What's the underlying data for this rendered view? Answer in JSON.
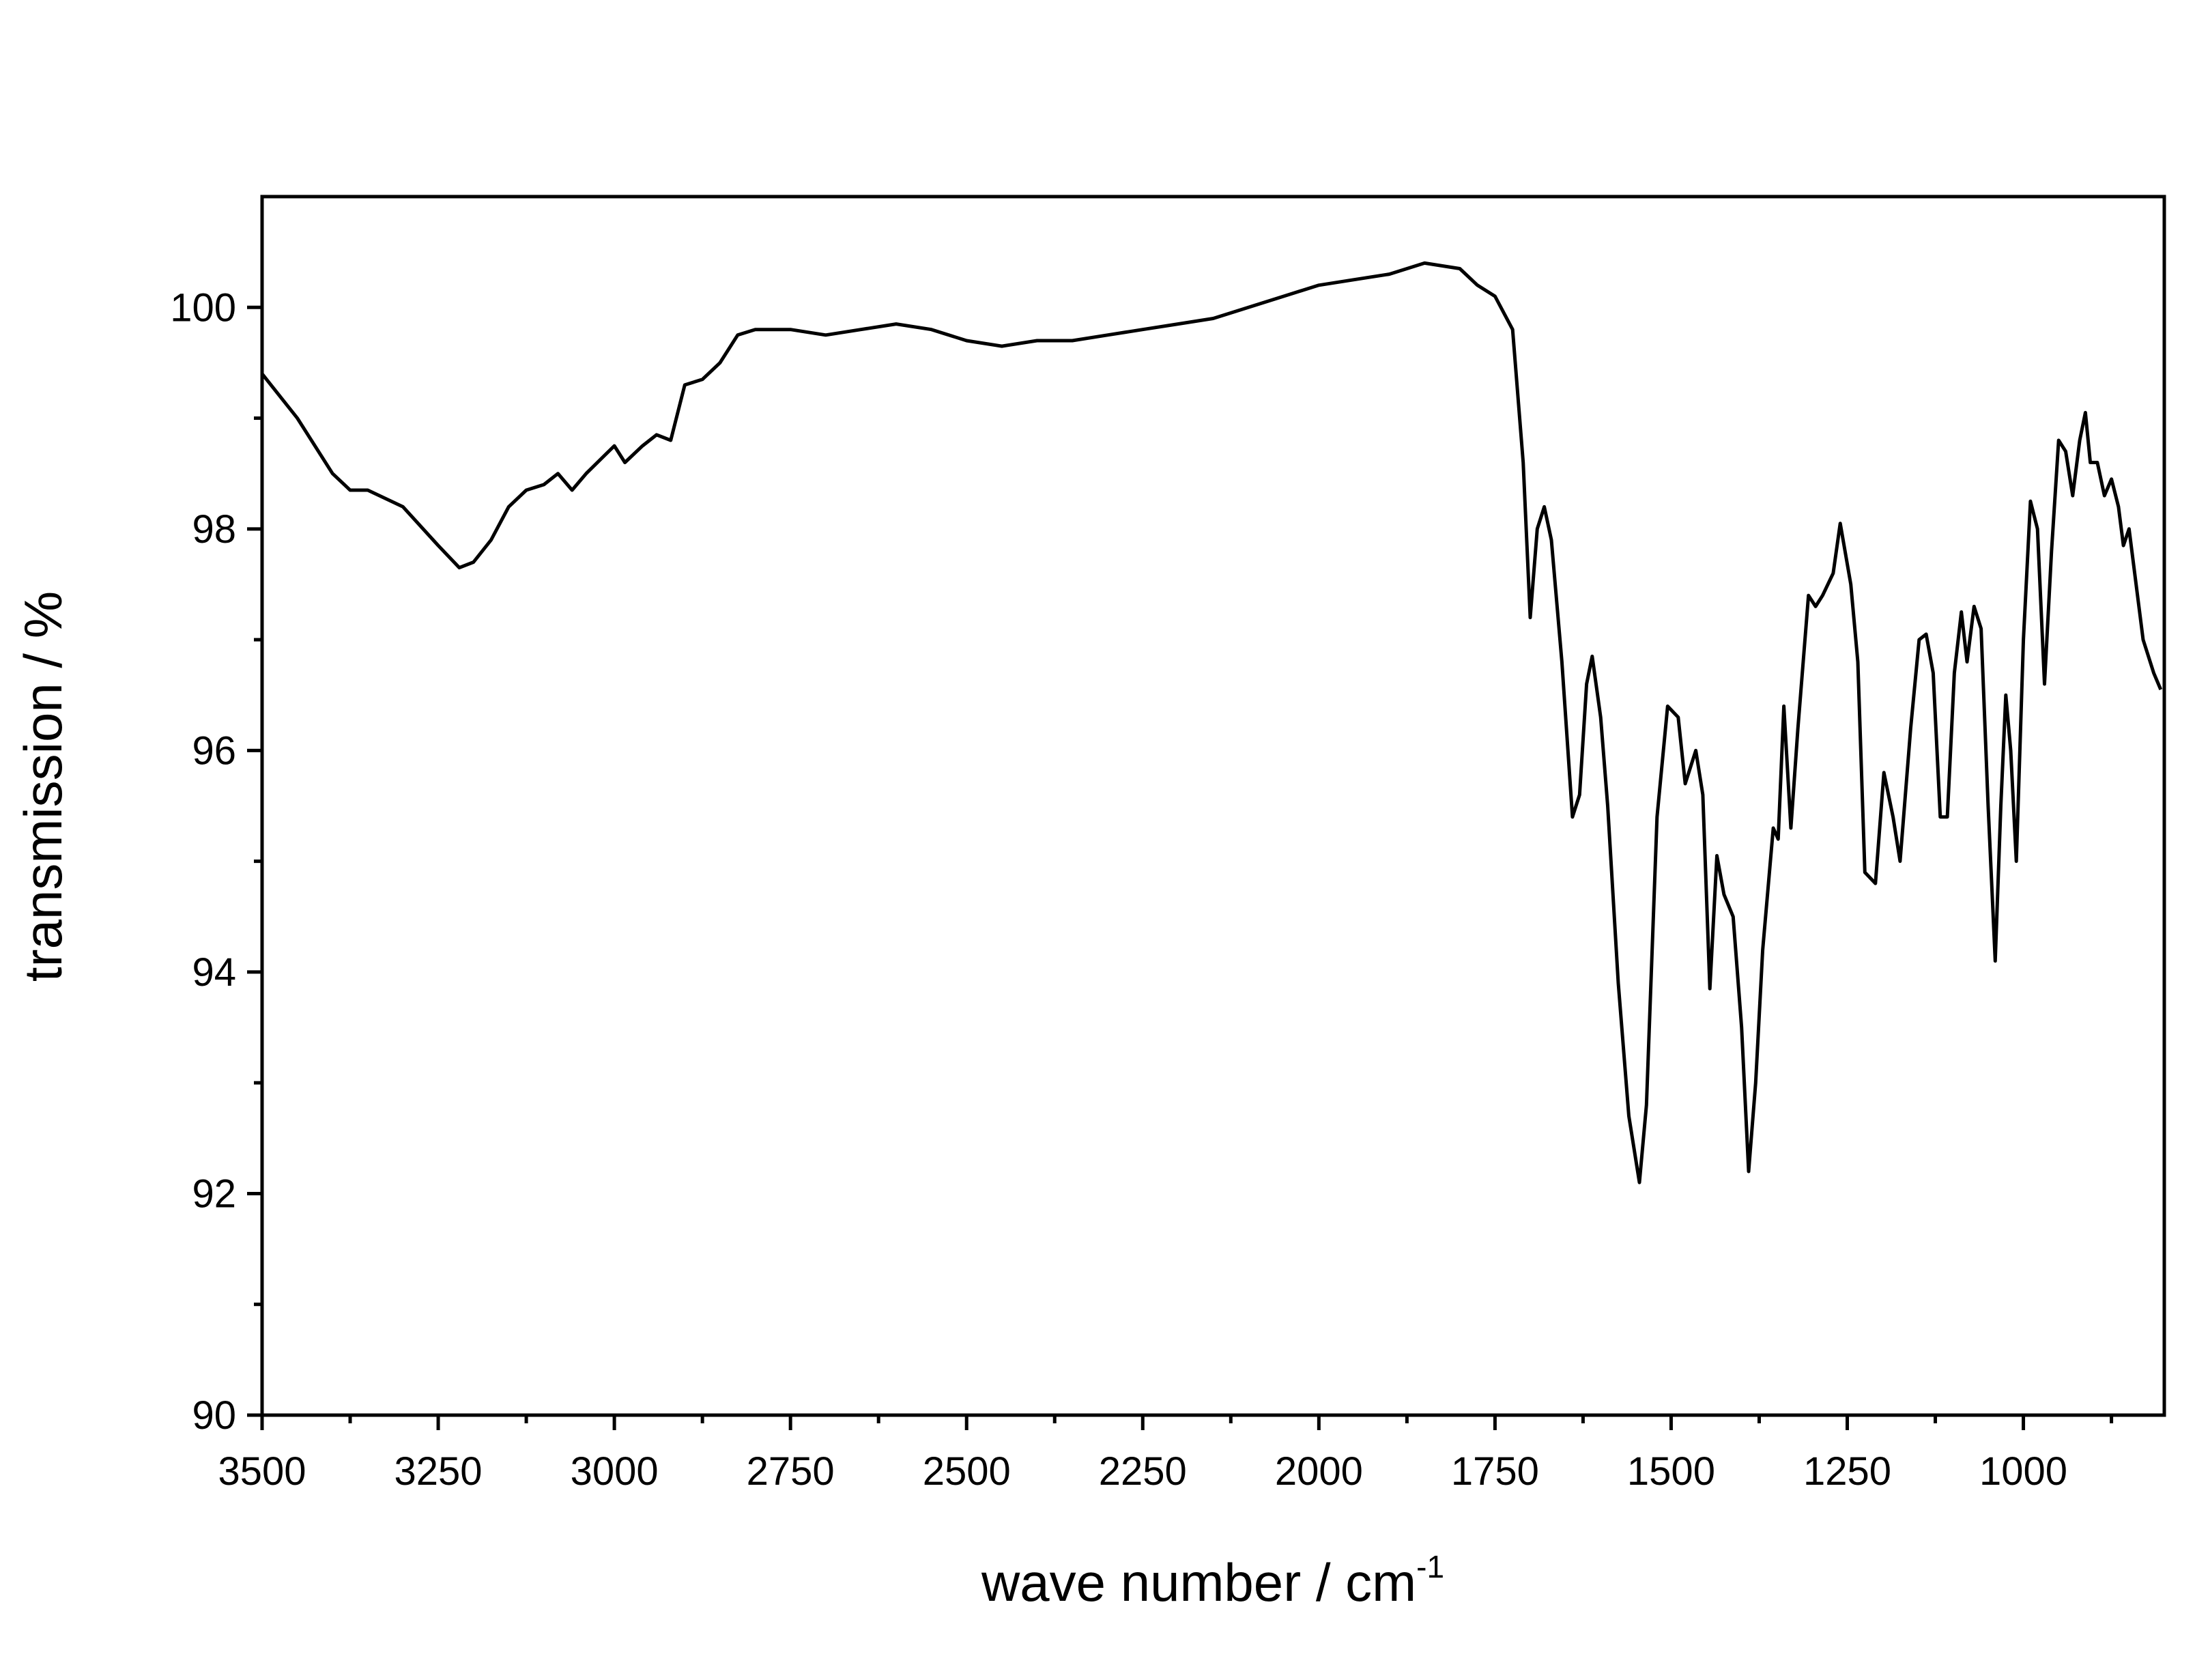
{
  "chart_data": {
    "type": "line",
    "x_label": "wave number / cm",
    "x_label_superscript": "-1",
    "y_label": "transmission / %",
    "xlim": [
      3500,
      800
    ],
    "ylim": [
      90,
      101
    ],
    "xticks": [
      3500,
      3250,
      3000,
      2750,
      2500,
      2250,
      2000,
      1750,
      1500,
      1250,
      1000
    ],
    "xminorticks": [
      3375,
      3125,
      2875,
      2625,
      2375,
      2125,
      1875,
      1625,
      1375,
      1125,
      875
    ],
    "yticks": [
      90,
      92,
      94,
      96,
      98,
      100
    ],
    "yminorticks": [
      91,
      93,
      95,
      97,
      99
    ],
    "grid": false,
    "series": [
      {
        "color": "#000000",
        "x": [
          3500,
          3450,
          3400,
          3375,
          3350,
          3300,
          3250,
          3220,
          3200,
          3175,
          3150,
          3125,
          3100,
          3080,
          3060,
          3040,
          3000,
          2985,
          2960,
          2940,
          2920,
          2900,
          2875,
          2850,
          2825,
          2800,
          2750,
          2700,
          2650,
          2600,
          2550,
          2500,
          2450,
          2400,
          2350,
          2300,
          2250,
          2200,
          2150,
          2100,
          2050,
          2000,
          1950,
          1900,
          1850,
          1800,
          1775,
          1750,
          1725,
          1710,
          1700,
          1690,
          1680,
          1670,
          1655,
          1640,
          1630,
          1620,
          1612,
          1600,
          1590,
          1575,
          1560,
          1545,
          1535,
          1520,
          1505,
          1490,
          1480,
          1465,
          1455,
          1445,
          1435,
          1425,
          1412,
          1400,
          1390,
          1380,
          1370,
          1355,
          1348,
          1340,
          1330,
          1320,
          1305,
          1295,
          1285,
          1270,
          1260,
          1245,
          1235,
          1225,
          1210,
          1198,
          1185,
          1175,
          1160,
          1148,
          1138,
          1128,
          1118,
          1108,
          1098,
          1088,
          1080,
          1070,
          1060,
          1050,
          1040,
          1032,
          1025,
          1018,
          1010,
          1000,
          990,
          980,
          970,
          960,
          950,
          940,
          930,
          920,
          912,
          905,
          895,
          885,
          875,
          865,
          858,
          850,
          840,
          830,
          815,
          805
        ],
        "values": [
          99.4,
          99.0,
          98.5,
          98.35,
          98.35,
          98.2,
          97.85,
          97.65,
          97.7,
          97.9,
          98.2,
          98.35,
          98.4,
          98.5,
          98.35,
          98.5,
          98.75,
          98.6,
          98.75,
          98.85,
          98.8,
          99.3,
          99.35,
          99.5,
          99.75,
          99.8,
          99.8,
          99.75,
          99.8,
          99.85,
          99.8,
          99.7,
          99.65,
          99.7,
          99.7,
          99.75,
          99.8,
          99.85,
          99.9,
          100.0,
          100.1,
          100.2,
          100.25,
          100.3,
          100.4,
          100.35,
          100.2,
          100.1,
          99.8,
          98.6,
          97.2,
          98.0,
          98.2,
          97.9,
          96.8,
          95.4,
          95.6,
          96.6,
          96.85,
          96.3,
          95.5,
          93.9,
          92.7,
          92.1,
          92.8,
          95.4,
          96.4,
          96.3,
          95.7,
          96.0,
          95.6,
          93.85,
          95.05,
          94.7,
          94.5,
          93.5,
          92.2,
          93.0,
          94.2,
          95.3,
          95.2,
          96.4,
          95.3,
          96.2,
          97.4,
          97.3,
          97.4,
          97.6,
          98.05,
          97.5,
          96.8,
          94.9,
          94.8,
          95.8,
          95.4,
          95.0,
          96.2,
          97.0,
          97.05,
          96.7,
          95.4,
          95.4,
          96.7,
          97.25,
          96.8,
          97.3,
          97.1,
          95.5,
          94.1,
          95.5,
          96.5,
          96.0,
          95.0,
          97.0,
          98.25,
          98.0,
          96.6,
          97.8,
          98.8,
          98.7,
          98.3,
          98.8,
          99.05,
          98.6,
          98.6,
          98.3,
          98.45,
          98.2,
          97.85,
          98.0,
          97.5,
          97.0,
          96.7,
          96.55
        ]
      }
    ]
  }
}
